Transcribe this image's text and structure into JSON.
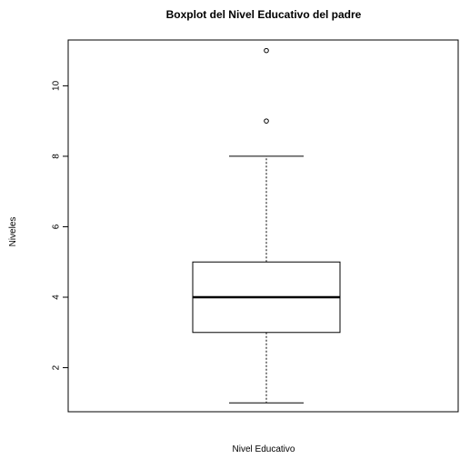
{
  "chart_data": {
    "type": "boxplot",
    "title": "Boxplot del Nivel Educativo del padre",
    "xlabel": "Nivel Educativo",
    "ylabel": "Niveles",
    "ylim": [
      0.75,
      11.3
    ],
    "yticks": [
      2,
      4,
      6,
      8,
      10
    ],
    "box": {
      "whisker_low": 1,
      "q1": 3,
      "median": 4,
      "q3": 5,
      "whisker_high": 8
    },
    "outliers": [
      9,
      11
    ],
    "grid": false,
    "legend": "none"
  }
}
